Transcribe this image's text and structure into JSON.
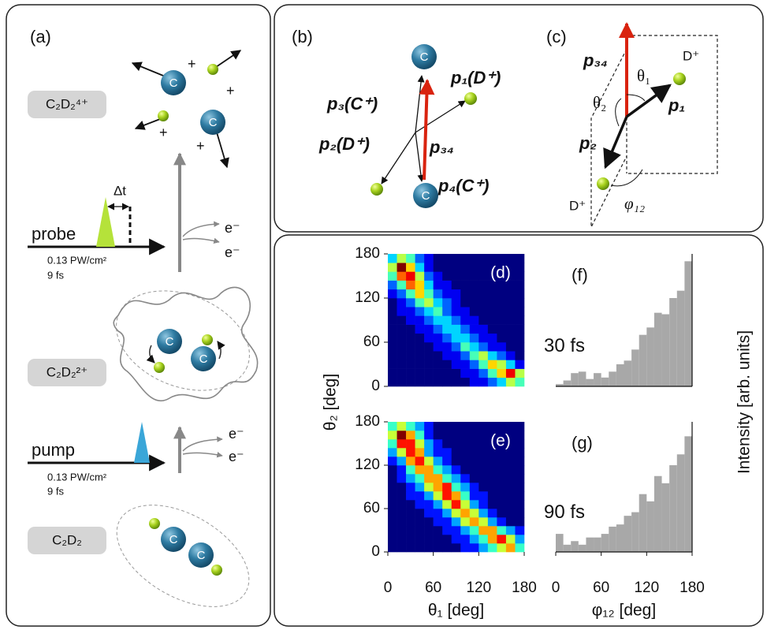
{
  "panels": {
    "a": "(a)",
    "b": "(b)",
    "c": "(c)"
  },
  "panel_a": {
    "species": [
      "C₂D₂⁴⁺",
      "C₂D₂²⁺",
      "C₂D₂"
    ],
    "probe": {
      "label": "probe",
      "delay": "Δt",
      "intensity": "0.13 PW/cm²",
      "duration": "9 fs"
    },
    "pump": {
      "label": "pump",
      "intensity": "0.13 PW/cm²",
      "duration": "9 fs"
    },
    "electron": "e⁻",
    "charge": "+",
    "atom": "C"
  },
  "panel_b": {
    "p3": "p₃(C⁺)",
    "p1": "p₁(D⁺)",
    "p2": "p₂(D⁺)",
    "p34": "p₃₄",
    "p4": "p₄(C⁺)"
  },
  "panel_c": {
    "p34": "p₃₄",
    "theta1": "θ₁",
    "theta2": "θ₂",
    "ion": "D⁺",
    "p1": "p₁",
    "p2": "p₂",
    "phi12": "φ₁₂"
  },
  "chart_data": [
    {
      "type": "heatmap",
      "label": "(d)",
      "ylabel": "θ₂ [deg]",
      "xlim": [
        0,
        180
      ],
      "ylim": [
        0,
        180
      ],
      "yticks": [
        0,
        60,
        120,
        180
      ],
      "z": [
        [
          0,
          0,
          0,
          0,
          0,
          0,
          0,
          0,
          0,
          1,
          1,
          2,
          3,
          5,
          4
        ],
        [
          0,
          0,
          0,
          0,
          0,
          0,
          0,
          0,
          1,
          1,
          2,
          4,
          6,
          8,
          5
        ],
        [
          0,
          0,
          0,
          0,
          0,
          0,
          0,
          1,
          1,
          2,
          4,
          6,
          5,
          3,
          1
        ],
        [
          0,
          0,
          0,
          0,
          0,
          0,
          1,
          1,
          2,
          4,
          5,
          3,
          2,
          1,
          0
        ],
        [
          0,
          0,
          0,
          0,
          0,
          1,
          1,
          2,
          4,
          3,
          2,
          1,
          1,
          0,
          0
        ],
        [
          0,
          0,
          0,
          0,
          1,
          1,
          2,
          3,
          3,
          2,
          1,
          1,
          0,
          0,
          0
        ],
        [
          0,
          0,
          0,
          1,
          1,
          2,
          3,
          3,
          2,
          1,
          1,
          0,
          0,
          0,
          0
        ],
        [
          0,
          0,
          1,
          1,
          2,
          3,
          3,
          2,
          1,
          1,
          0,
          0,
          0,
          0,
          0
        ],
        [
          0,
          1,
          1,
          2,
          3,
          4,
          2,
          1,
          1,
          0,
          0,
          0,
          0,
          0,
          0
        ],
        [
          0,
          1,
          2,
          4,
          5,
          3,
          2,
          1,
          0,
          0,
          0,
          0,
          0,
          0,
          0
        ],
        [
          1,
          2,
          4,
          6,
          4,
          2,
          1,
          1,
          0,
          0,
          0,
          0,
          0,
          0,
          0
        ],
        [
          2,
          4,
          7,
          6,
          3,
          1,
          1,
          0,
          0,
          0,
          0,
          0,
          0,
          0,
          0
        ],
        [
          4,
          7,
          8,
          5,
          2,
          1,
          0,
          0,
          0,
          0,
          0,
          0,
          0,
          0,
          0
        ],
        [
          5,
          9,
          6,
          3,
          1,
          0,
          0,
          0,
          0,
          0,
          0,
          0,
          0,
          0,
          0
        ],
        [
          3,
          5,
          4,
          2,
          1,
          0,
          0,
          0,
          0,
          0,
          0,
          0,
          0,
          0,
          0
        ]
      ]
    },
    {
      "type": "heatmap",
      "label": "(e)",
      "xlabel": "θ₁ [deg]",
      "xlim": [
        0,
        180
      ],
      "ylim": [
        0,
        180
      ],
      "xticks": [
        0,
        60,
        120,
        180
      ],
      "yticks": [
        0,
        60,
        120,
        180
      ],
      "z": [
        [
          0,
          0,
          0,
          0,
          0,
          0,
          0,
          0,
          1,
          1,
          2,
          3,
          4,
          5,
          3
        ],
        [
          0,
          0,
          0,
          0,
          0,
          0,
          0,
          1,
          1,
          2,
          3,
          5,
          6,
          4,
          2
        ],
        [
          0,
          0,
          0,
          0,
          0,
          0,
          1,
          1,
          2,
          3,
          5,
          5,
          3,
          2,
          1
        ],
        [
          0,
          0,
          0,
          0,
          0,
          1,
          1,
          2,
          4,
          5,
          4,
          2,
          1,
          0,
          0
        ],
        [
          0,
          0,
          0,
          0,
          1,
          1,
          2,
          4,
          5,
          4,
          2,
          1,
          0,
          0,
          0
        ],
        [
          0,
          0,
          0,
          1,
          1,
          2,
          4,
          6,
          4,
          2,
          1,
          0,
          0,
          0,
          0
        ],
        [
          0,
          0,
          1,
          1,
          2,
          4,
          6,
          5,
          3,
          1,
          1,
          0,
          0,
          0,
          0
        ],
        [
          0,
          0,
          1,
          2,
          4,
          5,
          6,
          3,
          2,
          1,
          0,
          0,
          0,
          0,
          0
        ],
        [
          0,
          1,
          2,
          3,
          5,
          5,
          3,
          2,
          1,
          0,
          0,
          0,
          0,
          0,
          0
        ],
        [
          0,
          1,
          3,
          5,
          5,
          3,
          2,
          1,
          0,
          0,
          0,
          0,
          0,
          0,
          0
        ],
        [
          1,
          2,
          5,
          6,
          4,
          2,
          1,
          0,
          0,
          0,
          0,
          0,
          0,
          0,
          0
        ],
        [
          2,
          4,
          6,
          5,
          2,
          1,
          1,
          0,
          0,
          0,
          0,
          0,
          0,
          0,
          0
        ],
        [
          3,
          6,
          6,
          4,
          2,
          1,
          0,
          0,
          0,
          0,
          0,
          0,
          0,
          0,
          0
        ],
        [
          4,
          7,
          5,
          3,
          1,
          0,
          0,
          0,
          0,
          0,
          0,
          0,
          0,
          0,
          0
        ],
        [
          3,
          4,
          3,
          2,
          1,
          0,
          0,
          0,
          0,
          0,
          0,
          0,
          0,
          0,
          0
        ]
      ]
    },
    {
      "type": "histogram",
      "label": "(f)",
      "annotation": "30 fs",
      "ylabel": "Intensity [arb. units]",
      "color": "#a8a8a8",
      "bins": [
        0,
        10,
        20,
        30,
        40,
        50,
        60,
        70,
        80,
        90,
        100,
        110,
        120,
        130,
        140,
        150,
        160,
        170,
        180
      ],
      "values": [
        3,
        8,
        18,
        20,
        10,
        18,
        12,
        20,
        30,
        35,
        50,
        70,
        80,
        100,
        98,
        120,
        130,
        170
      ],
      "xlim": [
        0,
        180
      ],
      "ylim": [
        0,
        180
      ]
    },
    {
      "type": "histogram",
      "label": "(g)",
      "annotation": "90 fs",
      "xlabel": "φ₁₂ [deg]",
      "color": "#a8a8a8",
      "bins": [
        0,
        10,
        20,
        30,
        40,
        50,
        60,
        70,
        80,
        90,
        100,
        110,
        120,
        130,
        140,
        150,
        160,
        170,
        180
      ],
      "values": [
        25,
        10,
        15,
        10,
        20,
        20,
        25,
        35,
        38,
        50,
        55,
        80,
        70,
        105,
        95,
        120,
        135,
        160
      ],
      "xlim": [
        0,
        180
      ],
      "ylim": [
        0,
        180
      ],
      "xticks": [
        0,
        60,
        120,
        180
      ]
    }
  ]
}
